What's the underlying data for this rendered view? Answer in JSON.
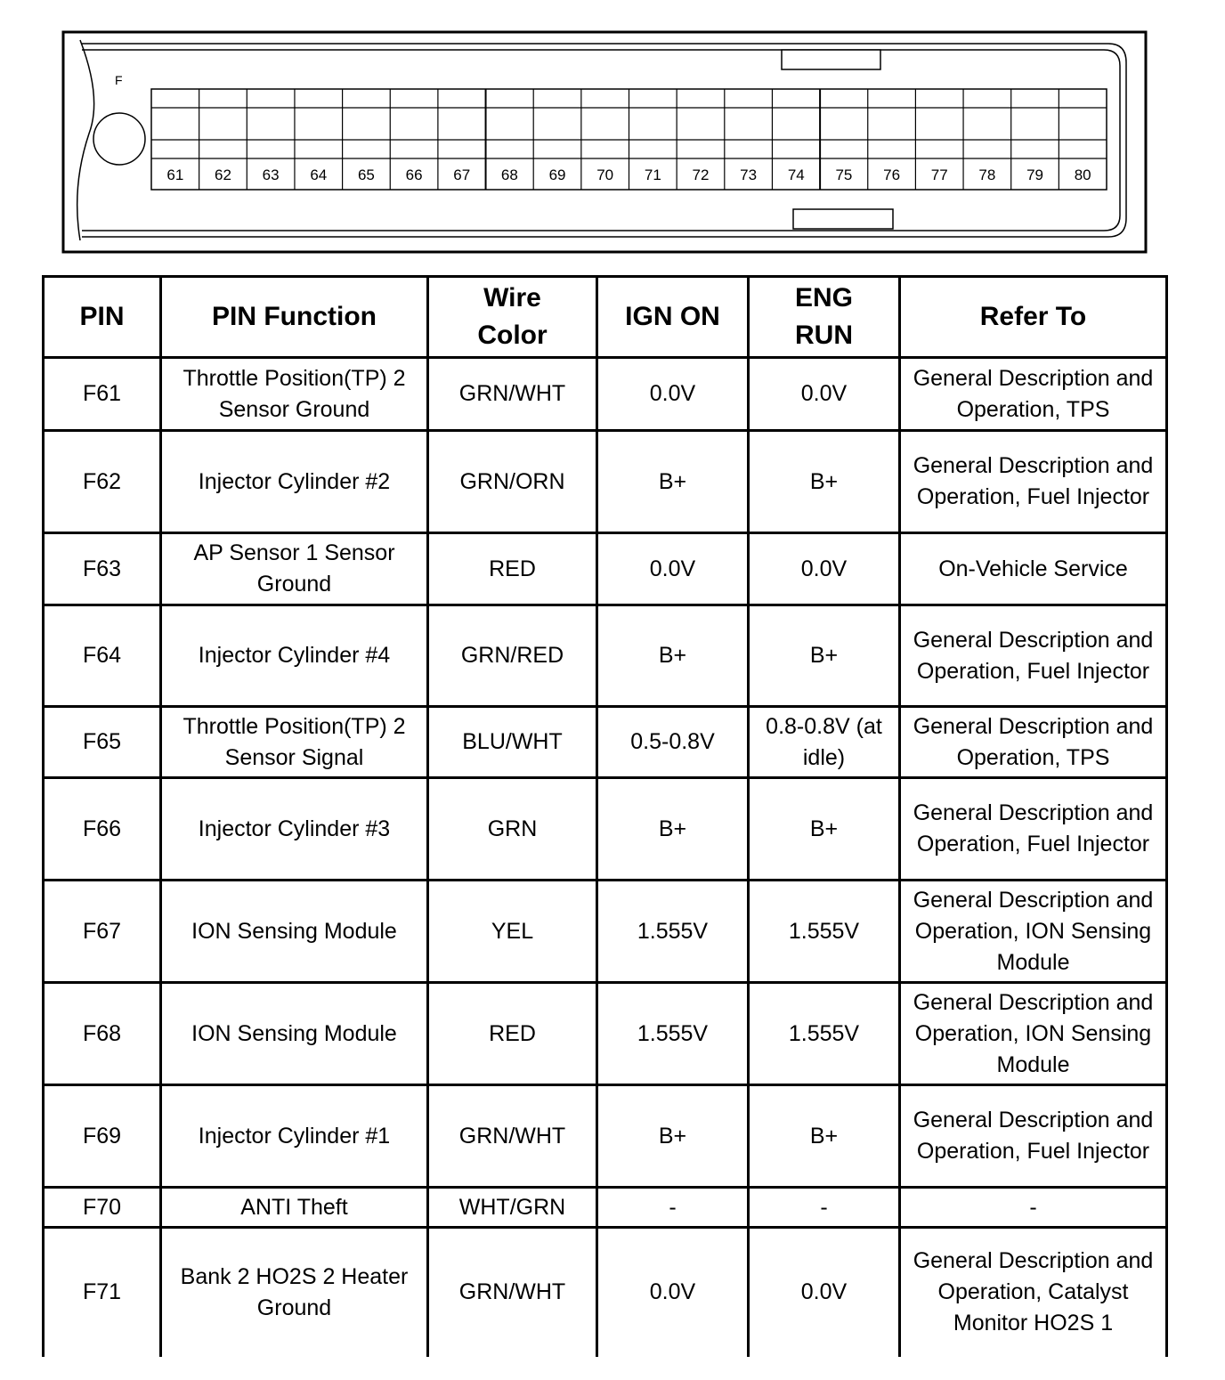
{
  "connector": {
    "label": "F",
    "pins": [
      "61",
      "62",
      "63",
      "64",
      "65",
      "66",
      "67",
      "68",
      "69",
      "70",
      "71",
      "72",
      "73",
      "74",
      "75",
      "76",
      "77",
      "78",
      "79",
      "80"
    ]
  },
  "table": {
    "headers": {
      "pin": "PIN",
      "function": "PIN Function",
      "wire": "Wire Color",
      "ign_on": "IGN ON",
      "eng_run": "ENG RUN",
      "refer": "Refer To"
    },
    "rows": [
      {
        "pin": "F61",
        "function": "Throttle Position(TP) 2 Sensor Ground",
        "wire": "GRN/WHT",
        "ign_on": "0.0V",
        "eng_run": "0.0V",
        "refer": "General Description and Operation, TPS"
      },
      {
        "pin": "F62",
        "function": "Injector Cylinder #2",
        "wire": "GRN/ORN",
        "ign_on": "B+",
        "eng_run": "B+",
        "refer": "General Description and Operation, Fuel Injector"
      },
      {
        "pin": "F63",
        "function": "AP Sensor 1 Sensor Ground",
        "wire": "RED",
        "ign_on": "0.0V",
        "eng_run": "0.0V",
        "refer": "On-Vehicle Service"
      },
      {
        "pin": "F64",
        "function": "Injector Cylinder #4",
        "wire": "GRN/RED",
        "ign_on": "B+",
        "eng_run": "B+",
        "refer": "General Description and Operation, Fuel Injector"
      },
      {
        "pin": "F65",
        "function": "Throttle Position(TP) 2 Sensor Signal",
        "wire": "BLU/WHT",
        "ign_on": "0.5-0.8V",
        "eng_run": "0.8-0.8V (at idle)",
        "refer": "General Description and Operation, TPS"
      },
      {
        "pin": "F66",
        "function": "Injector Cylinder #3",
        "wire": "GRN",
        "ign_on": "B+",
        "eng_run": "B+",
        "refer": "General Description and Operation, Fuel Injector"
      },
      {
        "pin": "F67",
        "function": "ION Sensing Module",
        "wire": "YEL",
        "ign_on": "1.555V",
        "eng_run": "1.555V",
        "refer": "General Description and Operation, ION Sensing Module"
      },
      {
        "pin": "F68",
        "function": "ION Sensing Module",
        "wire": "RED",
        "ign_on": "1.555V",
        "eng_run": "1.555V",
        "refer": "General Description and Operation, ION Sensing Module"
      },
      {
        "pin": "F69",
        "function": "Injector Cylinder #1",
        "wire": "GRN/WHT",
        "ign_on": "B+",
        "eng_run": "B+",
        "refer": "General Description and Operation, Fuel Injector"
      },
      {
        "pin": "F70",
        "function": "ANTI Theft",
        "wire": "WHT/GRN",
        "ign_on": "-",
        "eng_run": "-",
        "refer": "-"
      },
      {
        "pin": "F71",
        "function": "Bank 2 HO2S 2 Heater Ground",
        "wire": "GRN/WHT",
        "ign_on": "0.0V",
        "eng_run": "0.0V",
        "refer": "General Description and Operation, Catalyst Monitor HO2S 1"
      }
    ]
  }
}
